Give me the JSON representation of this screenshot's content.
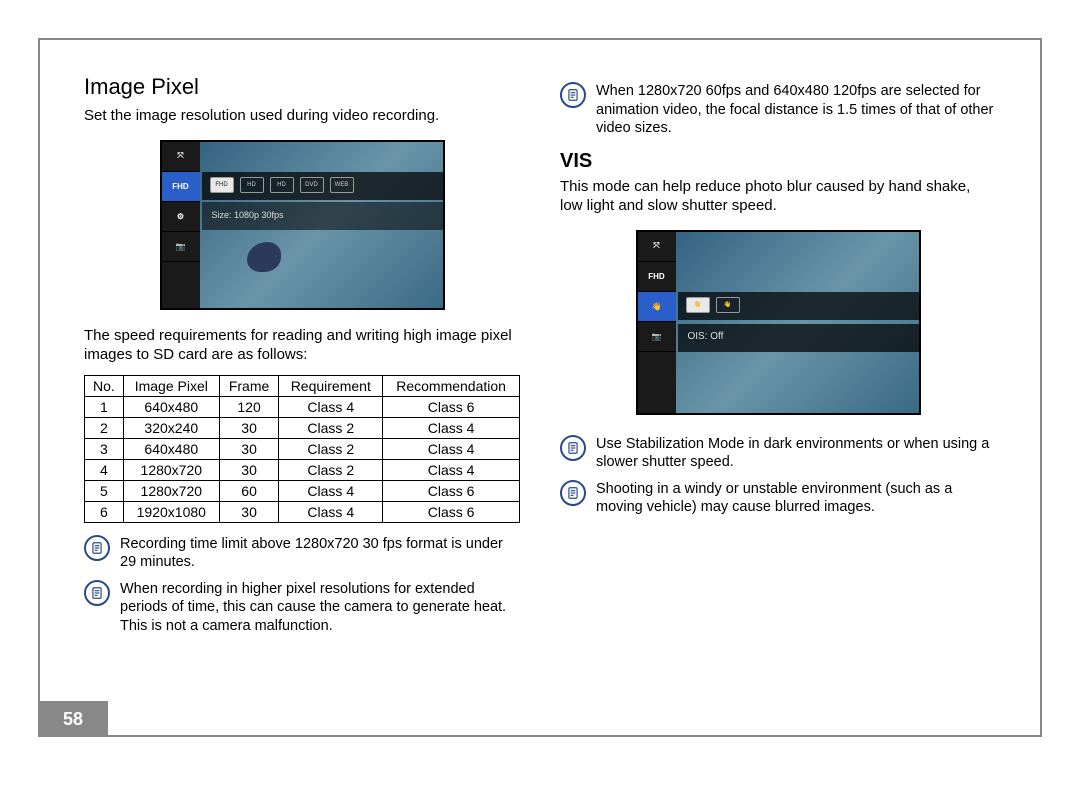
{
  "page_number": "58",
  "left": {
    "heading": "Image Pixel",
    "intro": "Set the image resolution used during video recording.",
    "thumb": {
      "side_labels": [
        "⤧",
        "FHD",
        "⚙",
        "📷"
      ],
      "chips": [
        "FHD",
        "HD",
        "HD",
        "DVD",
        "WEB"
      ],
      "size_label": "Size: 1080p 30fps"
    },
    "table_intro": "The speed requirements for reading and writing high image pixel images to SD card are as follows:",
    "table": {
      "columns": [
        "No.",
        "Image Pixel",
        "Frame",
        "Requirement",
        "Recommendation"
      ],
      "rows": [
        [
          "1",
          "640x480",
          "120",
          "Class 4",
          "Class 6"
        ],
        [
          "2",
          "320x240",
          "30",
          "Class 2",
          "Class 4"
        ],
        [
          "3",
          "640x480",
          "30",
          "Class 2",
          "Class 4"
        ],
        [
          "4",
          "1280x720",
          "30",
          "Class 2",
          "Class 4"
        ],
        [
          "5",
          "1280x720",
          "60",
          "Class 4",
          "Class 6"
        ],
        [
          "6",
          "1920x1080",
          "30",
          "Class 4",
          "Class 6"
        ]
      ]
    },
    "notes": [
      "Recording time limit above 1280x720 30 fps format is under 29 minutes.",
      "When recording in higher pixel resolutions for extended periods of time, this can cause the camera to generate heat. This is not a camera malfunction."
    ]
  },
  "right": {
    "top_note": "When 1280x720 60fps and 640x480 120fps are selected for animation video, the focal distance is 1.5 times of that of other video sizes.",
    "heading": "VIS",
    "intro": "This mode can help reduce photo blur caused by hand shake, low light and slow shutter speed.",
    "thumb": {
      "side_labels": [
        "⤧",
        "FHD",
        "👋",
        "📷"
      ],
      "ois_label": "OIS: Off"
    },
    "notes": [
      "Use Stabilization Mode in dark environments or when using a slower shutter speed.",
      "Shooting in a windy or unstable environment (such as a moving vehicle) may cause blurred images."
    ]
  },
  "colors": {
    "frame": "#888888",
    "note_icon": "#274b8a",
    "highlight": "#2a5ec8"
  }
}
